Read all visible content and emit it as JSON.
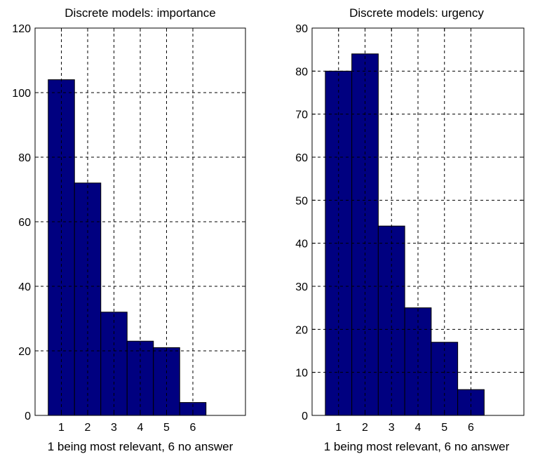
{
  "chart_data": [
    {
      "type": "bar",
      "title": "Discrete models: importance",
      "xlabel": "1 being most relevant, 6 no answer",
      "ylabel": "",
      "categories": [
        "1",
        "2",
        "3",
        "4",
        "5",
        "6"
      ],
      "values": [
        104,
        72,
        32,
        23,
        21,
        4
      ],
      "xlim": [
        0,
        8
      ],
      "ylim": [
        0,
        120
      ],
      "yticks": [
        0,
        20,
        40,
        60,
        80,
        100,
        120
      ],
      "grid": true,
      "bar_color": "#000080",
      "grid_style": "dashed"
    },
    {
      "type": "bar",
      "title": "Discrete models: urgency",
      "xlabel": "1 being most relevant, 6 no answer",
      "ylabel": "",
      "categories": [
        "1",
        "2",
        "3",
        "4",
        "5",
        "6"
      ],
      "values": [
        80,
        84,
        44,
        25,
        17,
        6
      ],
      "xlim": [
        0,
        8
      ],
      "ylim": [
        0,
        90
      ],
      "yticks": [
        0,
        10,
        20,
        30,
        40,
        50,
        60,
        70,
        80,
        90
      ],
      "grid": true,
      "bar_color": "#000080",
      "grid_style": "dashed"
    }
  ]
}
